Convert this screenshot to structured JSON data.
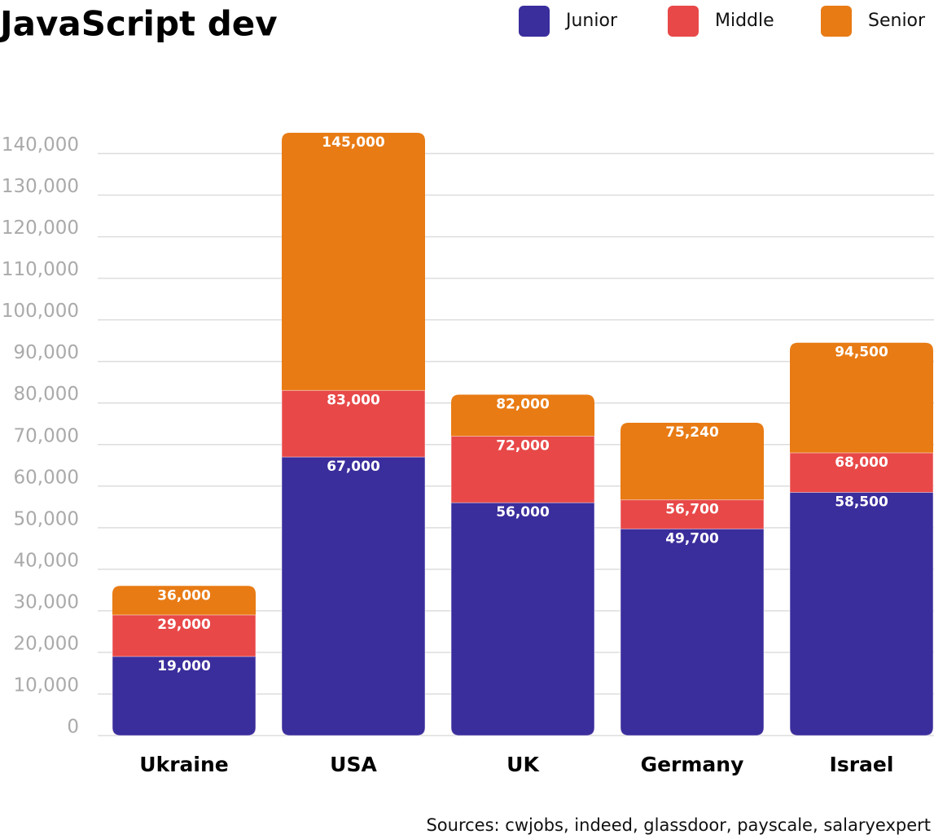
{
  "chart_data": {
    "type": "bar",
    "title": "JavaScript dev",
    "source": "Sources: cwjobs, indeed, glassdoor, payscale, salaryexpert",
    "categories": [
      "Ukraine",
      "USA",
      "UK",
      "Germany",
      "Israel"
    ],
    "series": [
      {
        "name": "Junior",
        "color": "#3a2d9c",
        "values": [
          19000,
          67000,
          56000,
          49700,
          58500
        ],
        "value_labels": [
          "19,000",
          "67,000",
          "56,000",
          "49,700",
          "58,500"
        ]
      },
      {
        "name": "Middle",
        "color": "#e84848",
        "values": [
          29000,
          83000,
          72000,
          56700,
          68000
        ],
        "value_labels": [
          "29,000",
          "83,000",
          "72,000",
          "56,700",
          "68,000"
        ]
      },
      {
        "name": "Senior",
        "color": "#e87b14",
        "values": [
          36000,
          145000,
          82000,
          75240,
          94500
        ],
        "value_labels": [
          "36,000",
          "145,000",
          "82,000",
          "75,240",
          "94,500"
        ]
      }
    ],
    "ylim": [
      0,
      145000
    ],
    "yticks": [
      0,
      {
        "value": 10000,
        "label": "10,000"
      },
      {
        "value": 20000,
        "label": "20,000"
      },
      {
        "value": 30000,
        "label": "30,000"
      },
      {
        "value": 40000,
        "label": "40,000"
      },
      {
        "value": 50000,
        "label": "50,000"
      },
      {
        "value": 60000,
        "label": "60,000"
      },
      {
        "value": 70000,
        "label": "70,000"
      },
      {
        "value": 80000,
        "label": "80,000"
      },
      {
        "value": 90000,
        "label": "90,000"
      },
      {
        "value": 100000,
        "label": "100,000"
      },
      {
        "value": 110000,
        "label": "110,000"
      },
      {
        "value": 120000,
        "label": "120,000"
      },
      {
        "value": 130000,
        "label": "130,000"
      },
      {
        "value": 140000,
        "label": "140,000"
      }
    ],
    "grid": true,
    "legend": "top-right"
  }
}
